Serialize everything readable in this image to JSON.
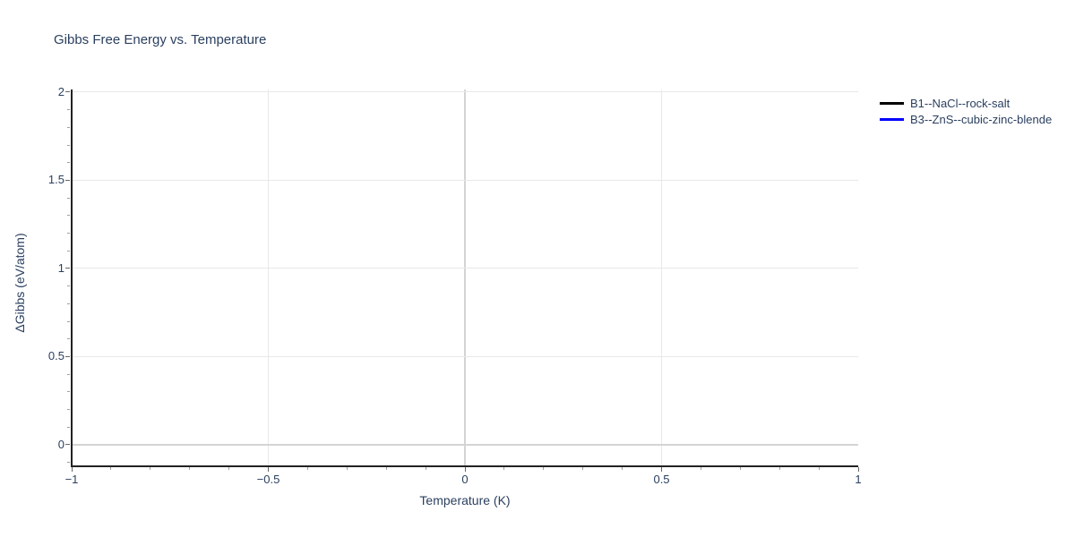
{
  "figure": {
    "background": "#ffffff",
    "text_color": "#2a3f5f",
    "axis_line_color": "#222222",
    "grid_color": "#e8e8e8",
    "zero_line_color": "#d4d4d4",
    "major_tick_color": "#666666",
    "minor_tick_color": "#9e9e9e"
  },
  "chart_data": {
    "type": "line",
    "title": "Gibbs Free Energy vs. Temperature",
    "xlabel": "Temperature (K)",
    "ylabel": "ΔGibbs (eV/atom)",
    "xlim": [
      -1,
      1
    ],
    "ylim": [
      -0.117,
      2.015
    ],
    "x_ticks": [
      -1,
      -0.5,
      0,
      0.5,
      1
    ],
    "x_tick_labels": [
      "−1",
      "−0.5",
      "0",
      "0.5",
      "1"
    ],
    "y_ticks": [
      0,
      0.5,
      1,
      1.5,
      2
    ],
    "y_tick_labels": [
      "0",
      "0.5",
      "1",
      "1.5",
      "2"
    ],
    "x_minor_tick_step": 0.1,
    "y_minor_tick_step": 0.1,
    "grid": true,
    "zero_lines": true,
    "legend_position": "outside-top-right",
    "series": [
      {
        "name": "B1--NaCl--rock-salt",
        "color": "#000000",
        "x": [],
        "y": []
      },
      {
        "name": "B3--ZnS--cubic-zinc-blende",
        "color": "#0000ff",
        "x": [],
        "y": []
      }
    ]
  }
}
